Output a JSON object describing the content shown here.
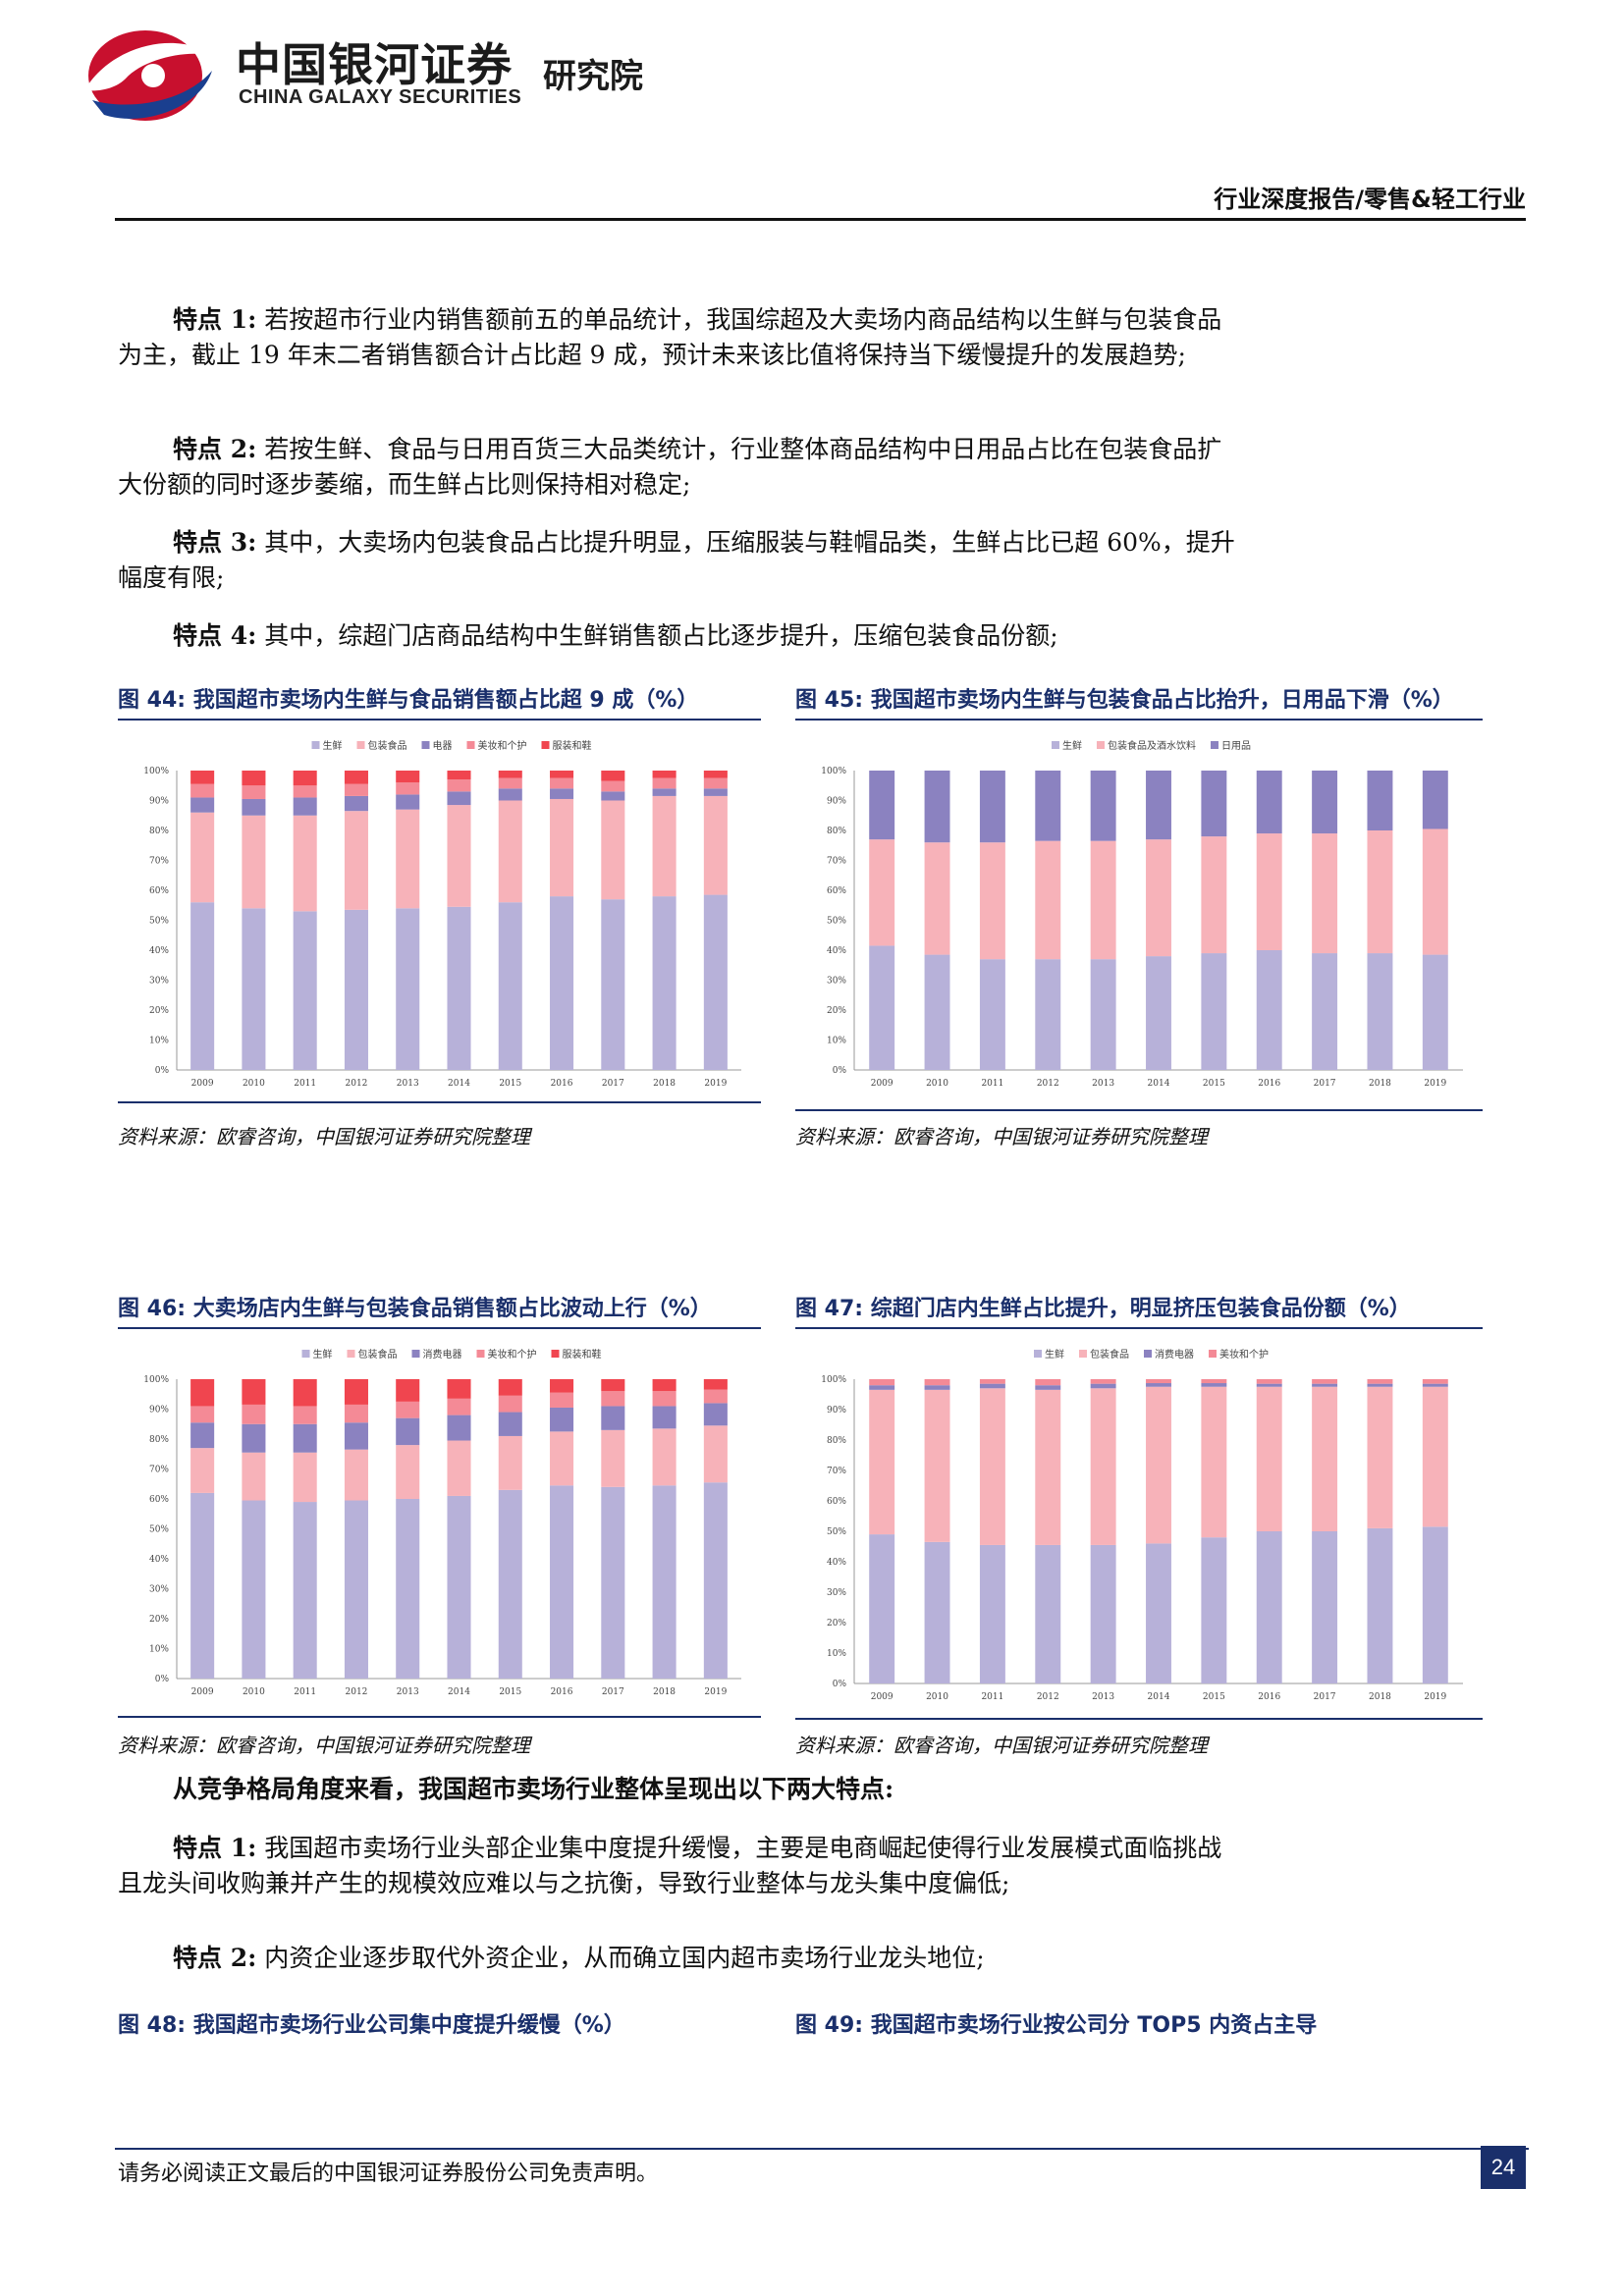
{
  "header": {
    "logo_cn": "中国银河证券",
    "logo_en": "CHINA GALAXY SECURITIES",
    "logo_inst": "研究院",
    "report_type": "行业深度报告/零售&轻工行业"
  },
  "paragraphs_top": [
    {
      "label": "特点 1:",
      "text": " 若按超市行业内销售额前五的单品统计，我国综超及大卖场内商品结构以生鲜与包装食品为主，截止 19 年末二者销售额合计占比超 9 成，预计未来该比值将保持当下缓慢提升的发展趋势;"
    },
    {
      "label": "特点 2:",
      "text": " 若按生鲜、食品与日用百货三大品类统计，行业整体商品结构中日用品占比在包装食品扩大份额的同时逐步萎缩，而生鲜占比则保持相对稳定;"
    },
    {
      "label": "特点 3:",
      "text": " 其中，大卖场内包装食品占比提升明显，压缩服装与鞋帽品类，生鲜占比已超 60%，提升幅度有限;"
    },
    {
      "label": "特点 4:",
      "text": " 其中，综超门店商品结构中生鲜销售额占比逐步提升，压缩包装食品份额;"
    }
  ],
  "figures": [
    {
      "title": "图 44: 我国超市卖场内生鲜与食品销售额占比超 9 成（%）",
      "source": "资料来源：欧睿咨询，中国银河证券研究院整理",
      "chart_data": {
        "type": "bar",
        "stacked": true,
        "categories": [
          "2009",
          "2010",
          "2011",
          "2012",
          "2013",
          "2014",
          "2015",
          "2016",
          "2017",
          "2018",
          "2019"
        ],
        "yticks": [
          "0%",
          "10%",
          "20%",
          "30%",
          "40%",
          "50%",
          "60%",
          "70%",
          "80%",
          "90%",
          "100%"
        ],
        "ylim": [
          0,
          100
        ],
        "series": [
          {
            "name": "生鲜",
            "color": "#b7b1d9",
            "values": [
              56,
              54,
              53,
              53.5,
              54,
              54.5,
              56,
              58,
              57,
              58,
              58.5
            ]
          },
          {
            "name": "包装食品",
            "color": "#f7b2b9",
            "values": [
              30,
              31,
              32,
              33,
              33,
              34,
              34,
              32.5,
              33,
              33.5,
              33
            ]
          },
          {
            "name": "电器",
            "color": "#8b82c0",
            "values": [
              5,
              5.5,
              6,
              5,
              5,
              4.5,
              4,
              3.5,
              3,
              2.5,
              2.5
            ]
          },
          {
            "name": "美妆和个护",
            "color": "#f48a96",
            "values": [
              4.5,
              4.5,
              4,
              4,
              4,
              4,
              3.5,
              3.5,
              3.5,
              3.5,
              3.5
            ]
          },
          {
            "name": "服装和鞋",
            "color": "#f0454f",
            "values": [
              4.5,
              5,
              5,
              4.5,
              4,
              3,
              2.5,
              2.5,
              3.5,
              2.5,
              2.5
            ]
          }
        ]
      }
    },
    {
      "title": "图 45: 我国超市卖场内生鲜与包装食品占比抬升，日用品下滑（%）",
      "source": "资料来源：欧睿咨询，中国银河证券研究院整理",
      "chart_data": {
        "type": "bar",
        "stacked": true,
        "categories": [
          "2009",
          "2010",
          "2011",
          "2012",
          "2013",
          "2014",
          "2015",
          "2016",
          "2017",
          "2018",
          "2019"
        ],
        "yticks": [
          "0%",
          "10%",
          "20%",
          "30%",
          "40%",
          "50%",
          "60%",
          "70%",
          "80%",
          "90%",
          "100%"
        ],
        "ylim": [
          0,
          100
        ],
        "series": [
          {
            "name": "生鲜",
            "color": "#b7b1d9",
            "values": [
              41.5,
              38.5,
              37,
              37,
              37,
              38,
              39,
              40,
              39,
              39,
              38.5
            ]
          },
          {
            "name": "包装食品及酒水饮料",
            "color": "#f7b2b9",
            "values": [
              35.5,
              37.5,
              39,
              39.5,
              39.5,
              39,
              39,
              39,
              40,
              41,
              42
            ]
          },
          {
            "name": "日用品",
            "color": "#8b82c0",
            "values": [
              23,
              24,
              24,
              23.5,
              23.5,
              23,
              22,
              21,
              21,
              20,
              19.5
            ]
          }
        ]
      }
    },
    {
      "title": "图 46: 大卖场店内生鲜与包装食品销售额占比波动上行（%）",
      "source": "资料来源：欧睿咨询，中国银河证券研究院整理",
      "chart_data": {
        "type": "bar",
        "stacked": true,
        "categories": [
          "2009",
          "2010",
          "2011",
          "2012",
          "2013",
          "2014",
          "2015",
          "2016",
          "2017",
          "2018",
          "2019"
        ],
        "yticks": [
          "0%",
          "10%",
          "20%",
          "30%",
          "40%",
          "50%",
          "60%",
          "70%",
          "80%",
          "90%",
          "100%"
        ],
        "ylim": [
          0,
          100
        ],
        "series": [
          {
            "name": "生鲜",
            "color": "#b7b1d9",
            "values": [
              62,
              59.5,
              59,
              59.5,
              60,
              61,
              63,
              64.5,
              64,
              64.5,
              65.5
            ]
          },
          {
            "name": "包装食品",
            "color": "#f7b2b9",
            "values": [
              15,
              16,
              16.5,
              17,
              18,
              18.5,
              18,
              18,
              19,
              19,
              19
            ]
          },
          {
            "name": "消费电器",
            "color": "#8b82c0",
            "values": [
              8.5,
              9.5,
              9.5,
              9,
              9,
              8.5,
              8,
              8,
              8,
              7.5,
              7.5
            ]
          },
          {
            "name": "美妆和个护",
            "color": "#f48a96",
            "values": [
              5.5,
              6.5,
              6,
              6,
              5.5,
              5.5,
              5.5,
              5,
              5,
              5,
              4.5
            ]
          },
          {
            "name": "服装和鞋",
            "color": "#f0454f",
            "values": [
              9,
              8.5,
              9,
              8.5,
              7.5,
              6.5,
              5.5,
              4.5,
              4,
              4,
              3.5
            ]
          }
        ]
      }
    },
    {
      "title": "图 47: 综超门店内生鲜占比提升，明显挤压包装食品份额（%）",
      "source": "资料来源：欧睿咨询，中国银河证券研究院整理",
      "chart_data": {
        "type": "bar",
        "stacked": true,
        "categories": [
          "2009",
          "2010",
          "2011",
          "2012",
          "2013",
          "2014",
          "2015",
          "2016",
          "2017",
          "2018",
          "2019"
        ],
        "yticks": [
          "0%",
          "10%",
          "20%",
          "30%",
          "40%",
          "50%",
          "60%",
          "70%",
          "80%",
          "90%",
          "100%"
        ],
        "ylim": [
          0,
          100
        ],
        "series": [
          {
            "name": "生鲜",
            "color": "#b7b1d9",
            "values": [
              49,
              46.5,
              45.5,
              45.5,
              45.5,
              46,
              48,
              50,
              50,
              51,
              51.5
            ]
          },
          {
            "name": "包装食品",
            "color": "#f7b2b9",
            "values": [
              47.5,
              50,
              51.5,
              51,
              51.5,
              51.5,
              49.5,
              47.5,
              47.5,
              46.5,
              46
            ]
          },
          {
            "name": "消费电器",
            "color": "#8b82c0",
            "values": [
              1.5,
              1.5,
              1.5,
              1.5,
              1.5,
              1.2,
              1.2,
              1,
              1,
              1,
              1
            ]
          },
          {
            "name": "美妆和个护",
            "color": "#f48a96",
            "values": [
              2,
              2,
              1.5,
              2,
              1.5,
              1.3,
              1.3,
              1.5,
              1.5,
              1.5,
              1.5
            ]
          }
        ]
      }
    }
  ],
  "section_heading": "从竞争格局角度来看，我国超市卖场行业整体呈现出以下两大特点:",
  "paragraphs_bottom": [
    {
      "label": "特点 1:",
      "text": " 我国超市卖场行业头部企业集中度提升缓慢，主要是电商崛起使得行业发展模式面临挑战且龙头间收购兼并产生的规模效应难以与之抗衡，导致行业整体与龙头集中度偏低;"
    },
    {
      "label": "特点 2:",
      "text": " 内资企业逐步取代外资企业，从而确立国内超市卖场行业龙头地位;"
    }
  ],
  "figures_bottom": [
    {
      "title": "图 48: 我国超市卖场行业公司集中度提升缓慢（%）"
    },
    {
      "title": "图 49: 我国超市卖场行业按公司分 TOP5 内资占主导"
    }
  ],
  "footer": {
    "disclaimer": "请务必阅读正文最后的中国银河证券股份公司免责声明。",
    "page_number": "24"
  }
}
